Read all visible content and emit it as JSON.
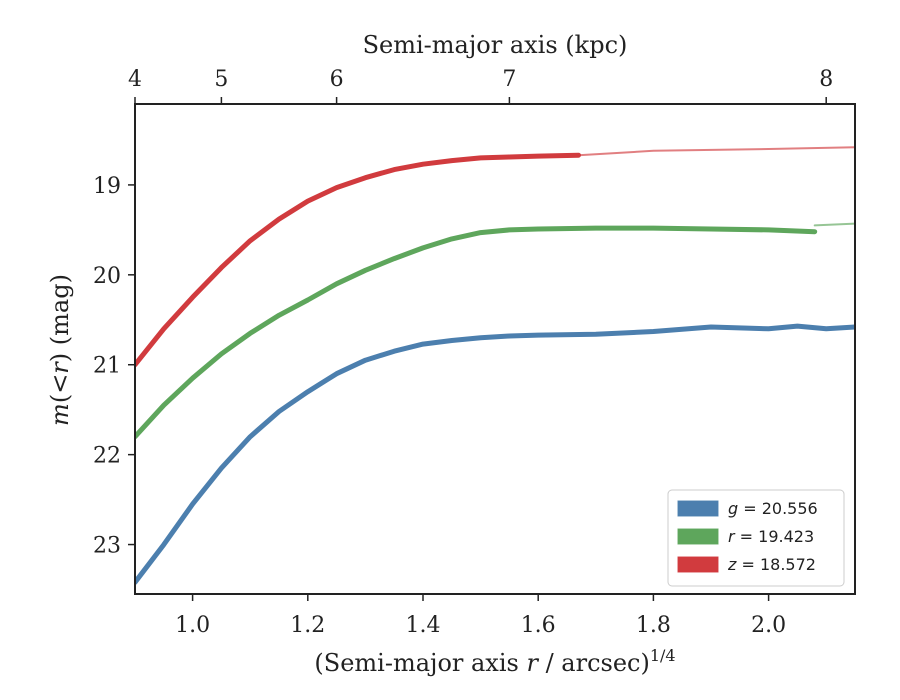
{
  "chart_data": {
    "type": "line",
    "xlabel": "(Semi-major axis r / arcsec)^1/4",
    "ylabel": "m(<r) (mag)",
    "top_xlabel": "Semi-major axis (kpc)",
    "xlim": [
      0.9,
      2.15
    ],
    "ylim": [
      23.55,
      18.1
    ],
    "y_inverted": true,
    "xticks": [
      1.0,
      1.2,
      1.4,
      1.6,
      1.8,
      2.0
    ],
    "yticks": [
      19,
      20,
      21,
      22,
      23
    ],
    "top_xticks": [
      4,
      5,
      6,
      7,
      8
    ],
    "top_xtick_positions": [
      0.9,
      1.05,
      1.25,
      1.55,
      2.1
    ],
    "legend_position": "lower-right",
    "series": [
      {
        "name": "g = 20.556",
        "color": "#4c7fae",
        "points": [
          [
            0.9,
            23.42
          ],
          [
            0.95,
            23.0
          ],
          [
            1.0,
            22.55
          ],
          [
            1.05,
            22.15
          ],
          [
            1.1,
            21.8
          ],
          [
            1.15,
            21.52
          ],
          [
            1.2,
            21.3
          ],
          [
            1.25,
            21.1
          ],
          [
            1.3,
            20.95
          ],
          [
            1.35,
            20.85
          ],
          [
            1.4,
            20.77
          ],
          [
            1.45,
            20.73
          ],
          [
            1.5,
            20.7
          ],
          [
            1.55,
            20.68
          ],
          [
            1.6,
            20.67
          ],
          [
            1.7,
            20.66
          ],
          [
            1.8,
            20.63
          ],
          [
            1.9,
            20.58
          ],
          [
            2.0,
            20.6
          ],
          [
            2.05,
            20.57
          ],
          [
            2.1,
            20.6
          ],
          [
            2.15,
            20.58
          ]
        ]
      },
      {
        "name": "r = 19.423",
        "color": "#5ea65c",
        "points": [
          [
            0.9,
            21.8
          ],
          [
            0.95,
            21.45
          ],
          [
            1.0,
            21.15
          ],
          [
            1.05,
            20.88
          ],
          [
            1.1,
            20.65
          ],
          [
            1.15,
            20.45
          ],
          [
            1.2,
            20.28
          ],
          [
            1.25,
            20.1
          ],
          [
            1.3,
            19.95
          ],
          [
            1.35,
            19.82
          ],
          [
            1.4,
            19.7
          ],
          [
            1.45,
            19.6
          ],
          [
            1.5,
            19.53
          ],
          [
            1.55,
            19.5
          ],
          [
            1.6,
            19.49
          ],
          [
            1.7,
            19.48
          ],
          [
            1.8,
            19.48
          ],
          [
            1.9,
            19.49
          ],
          [
            2.0,
            19.5
          ],
          [
            2.08,
            19.52
          ]
        ],
        "extrapolation": [
          [
            2.08,
            19.45
          ],
          [
            2.15,
            19.43
          ]
        ]
      },
      {
        "name": "z = 18.572",
        "color": "#d13b3e",
        "points": [
          [
            0.9,
            21.0
          ],
          [
            0.95,
            20.6
          ],
          [
            1.0,
            20.25
          ],
          [
            1.05,
            19.92
          ],
          [
            1.1,
            19.62
          ],
          [
            1.15,
            19.38
          ],
          [
            1.2,
            19.18
          ],
          [
            1.25,
            19.03
          ],
          [
            1.3,
            18.92
          ],
          [
            1.35,
            18.83
          ],
          [
            1.4,
            18.77
          ],
          [
            1.45,
            18.73
          ],
          [
            1.5,
            18.7
          ],
          [
            1.55,
            18.69
          ],
          [
            1.6,
            18.68
          ],
          [
            1.67,
            18.67
          ]
        ],
        "extrapolation": [
          [
            1.67,
            18.67
          ],
          [
            1.8,
            18.62
          ],
          [
            2.0,
            18.6
          ],
          [
            2.15,
            18.58
          ]
        ]
      }
    ]
  }
}
